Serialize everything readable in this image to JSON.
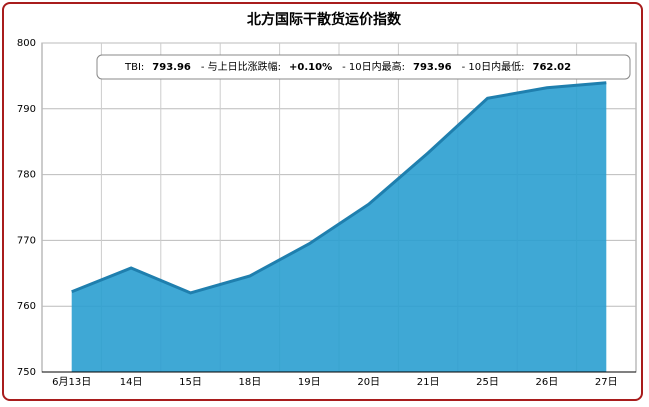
{
  "chart_data": {
    "type": "area",
    "title": "北方国际干散货运价指数",
    "categories": [
      "6月13日",
      "14日",
      "15日",
      "18日",
      "19日",
      "20日",
      "21日",
      "25日",
      "26日",
      "27日"
    ],
    "series": [
      {
        "name": "TBI",
        "color": "#2a9fd0",
        "values": [
          762.2,
          765.8,
          762.02,
          764.6,
          769.5,
          775.5,
          783.3,
          791.6,
          793.2,
          793.96
        ]
      }
    ],
    "ylim": [
      750,
      800
    ],
    "yticks": [
      750,
      760,
      770,
      780,
      790,
      800
    ],
    "grid": true,
    "tooltip": [
      {
        "label": "TBI:",
        "value": "793.96"
      },
      {
        "label": "- 与上日比涨跌幅:",
        "value": "+0.10%"
      },
      {
        "label": "- 10日内最高:",
        "value": "793.96"
      },
      {
        "label": "- 10日内最低:",
        "value": "762.02"
      }
    ]
  }
}
